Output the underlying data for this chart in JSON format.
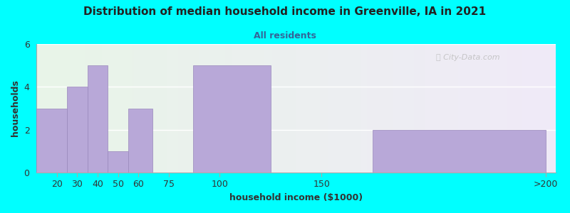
{
  "title": "Distribution of median household income in Greenville, IA in 2021",
  "subtitle": "All residents",
  "xlabel": "household income ($1000)",
  "ylabel": "households",
  "background_color": "#00FFFF",
  "plot_bg_gradient_left": "#e8f5e8",
  "plot_bg_gradient_right": "#f0eaf8",
  "bar_color": "#b8a8d8",
  "bar_edge_color": "#9988bb",
  "watermark": "City-Data.com",
  "ylim": [
    0,
    6
  ],
  "yticks": [
    0,
    2,
    4,
    6
  ],
  "bars": [
    {
      "label": "20",
      "x_start": 10,
      "x_end": 25,
      "value": 3
    },
    {
      "label": "30",
      "x_start": 25,
      "x_end": 35,
      "value": 4
    },
    {
      "label": "40",
      "x_start": 35,
      "x_end": 45,
      "value": 5
    },
    {
      "label": "50",
      "x_start": 45,
      "x_end": 55,
      "value": 1
    },
    {
      "label": "60",
      "x_start": 55,
      "x_end": 67,
      "value": 3
    },
    {
      "label": "75",
      "x_start": 67,
      "x_end": 87,
      "value": 0
    },
    {
      "label": "100",
      "x_start": 87,
      "x_end": 125,
      "value": 5
    },
    {
      "label": "150",
      "x_start": 125,
      "x_end": 175,
      "value": 0
    },
    {
      "label": ">200",
      "x_start": 175,
      "x_end": 260,
      "value": 2
    }
  ],
  "xtick_positions": [
    20,
    30,
    40,
    50,
    60,
    75,
    100,
    150,
    260
  ],
  "xtick_labels": [
    "20",
    "30",
    "40",
    "50",
    "60",
    "75",
    "100",
    "150",
    ">200"
  ],
  "xlim": [
    10,
    265
  ]
}
